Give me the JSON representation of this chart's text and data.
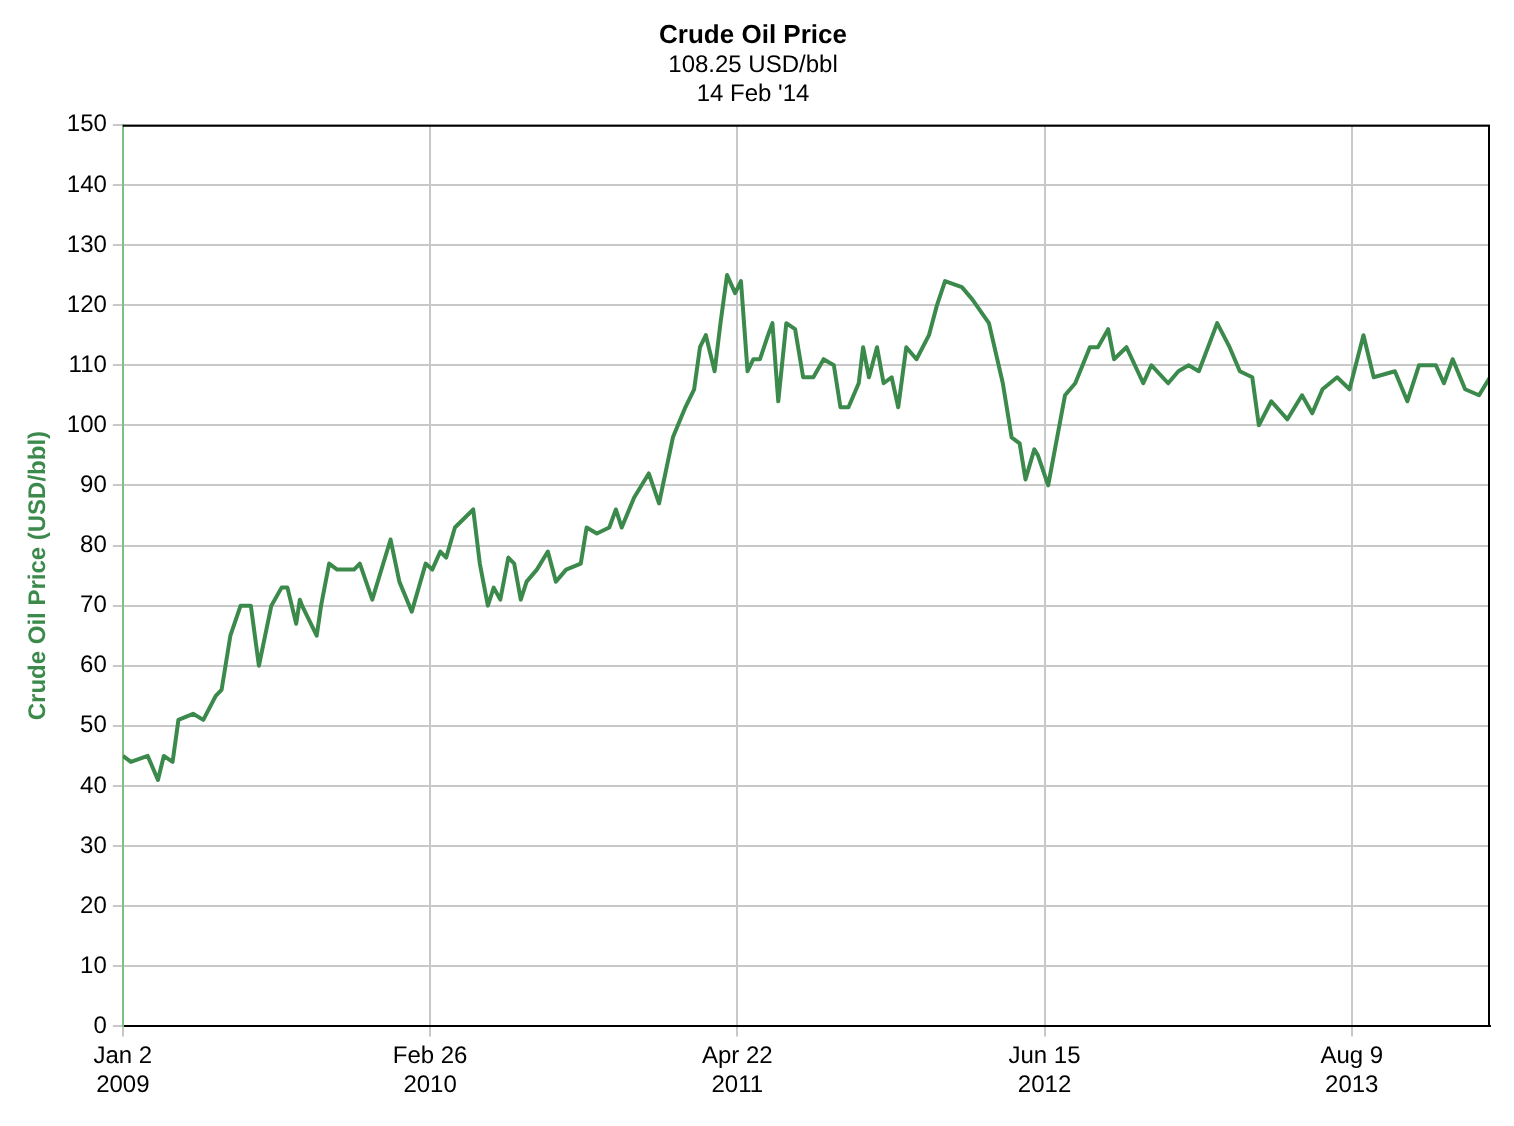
{
  "chart_data": {
    "type": "line",
    "title": "Crude Oil Price",
    "subtitle": "108.25 USD/bbl\n14 Feb '14",
    "ylabel": "Crude Oil Price (USD/bbl)",
    "x": [
      "2009-01-02",
      "2009-01-13",
      "2009-02-05",
      "2009-02-19",
      "2009-02-27",
      "2009-03-11",
      "2009-03-19",
      "2009-04-08",
      "2009-04-22",
      "2009-05-09",
      "2009-05-17",
      "2009-05-29",
      "2009-06-12",
      "2009-06-26",
      "2009-07-07",
      "2009-07-24",
      "2009-08-07",
      "2009-08-15",
      "2009-08-27",
      "2009-09-01",
      "2009-09-04",
      "2009-09-24",
      "2009-09-30",
      "2009-10-11",
      "2009-10-22",
      "2009-11-14",
      "2009-11-22",
      "2009-12-09",
      "2010-01-03",
      "2010-01-15",
      "2010-02-01",
      "2010-02-20",
      "2010-03-01",
      "2010-03-12",
      "2010-03-20",
      "2010-04-01",
      "2010-04-26",
      "2010-05-05",
      "2010-05-16",
      "2010-05-24",
      "2010-06-02",
      "2010-06-13",
      "2010-06-21",
      "2010-06-30",
      "2010-07-08",
      "2010-07-22",
      "2010-08-06",
      "2010-08-17",
      "2010-08-31",
      "2010-09-20",
      "2010-09-28",
      "2010-10-12",
      "2010-10-29",
      "2010-11-07",
      "2010-11-15",
      "2010-12-02",
      "2010-12-22",
      "2011-01-05",
      "2011-01-24",
      "2011-02-10",
      "2011-02-22",
      "2011-03-02",
      "2011-03-10",
      "2011-03-22",
      "2011-03-30",
      "2011-04-08",
      "2011-04-19",
      "2011-04-27",
      "2011-05-06",
      "2011-05-14",
      "2011-05-23",
      "2011-06-03",
      "2011-06-09",
      "2011-06-17",
      "2011-06-28",
      "2011-07-10",
      "2011-07-21",
      "2011-08-04",
      "2011-08-18",
      "2011-09-01",
      "2011-09-10",
      "2011-09-21",
      "2011-10-05",
      "2011-10-11",
      "2011-10-19",
      "2011-10-30",
      "2011-11-08",
      "2011-11-19",
      "2011-11-28",
      "2011-12-09",
      "2011-12-23",
      "2012-01-09",
      "2012-01-20",
      "2012-01-31",
      "2012-02-23",
      "2012-03-08",
      "2012-03-31",
      "2012-04-19",
      "2012-05-01",
      "2012-05-12",
      "2012-05-20",
      "2012-06-01",
      "2012-06-06",
      "2012-06-20",
      "2012-07-13",
      "2012-07-27",
      "2012-08-16",
      "2012-08-27",
      "2012-09-10",
      "2012-09-18",
      "2012-10-05",
      "2012-10-28",
      "2012-11-08",
      "2012-12-01",
      "2012-12-15",
      "2012-12-29",
      "2013-01-12",
      "2013-02-06",
      "2013-02-23",
      "2013-03-09",
      "2013-03-26",
      "2013-04-04",
      "2013-04-21",
      "2013-05-13",
      "2013-06-02",
      "2013-06-16",
      "2013-06-30",
      "2013-07-20",
      "2013-08-06",
      "2013-08-25",
      "2013-09-08",
      "2013-10-07",
      "2013-10-24",
      "2013-11-09",
      "2013-12-02",
      "2013-12-13",
      "2013-12-25",
      "2014-01-11",
      "2014-01-30",
      "2014-02-14"
    ],
    "series": [
      {
        "color": "#3b8a4c",
        "values": [
          45,
          44,
          45,
          41,
          45,
          44,
          51,
          52,
          51,
          55,
          56,
          65,
          70,
          70,
          60,
          70,
          73,
          73,
          67,
          71,
          70,
          65,
          70,
          77,
          76,
          76,
          77,
          71,
          81,
          74,
          69,
          77,
          76,
          79,
          78,
          83,
          86,
          77,
          70,
          73,
          71,
          78,
          77,
          71,
          74,
          76,
          79,
          74,
          76,
          77,
          83,
          82,
          83,
          86,
          83,
          88,
          92,
          87,
          98,
          103,
          106,
          113,
          115,
          109,
          117,
          125,
          122,
          124,
          109,
          111,
          111,
          115,
          117,
          104,
          117,
          116,
          108,
          108,
          111,
          110,
          103,
          103,
          107,
          113,
          108,
          113,
          107,
          108,
          103,
          113,
          111,
          115,
          120,
          124,
          123,
          121,
          117,
          107,
          98,
          97,
          91,
          96,
          95,
          90,
          105,
          107,
          113,
          113,
          116,
          111,
          113,
          107,
          110,
          107,
          109,
          110,
          109,
          117,
          113,
          109,
          108,
          100,
          104,
          101,
          105,
          102,
          106,
          108,
          106,
          115,
          108,
          109,
          104,
          110,
          110,
          107,
          111,
          106,
          105,
          108
        ]
      }
    ],
    "ylim": [
      0,
      150
    ],
    "yticks": [
      0,
      10,
      20,
      30,
      40,
      50,
      60,
      70,
      80,
      90,
      100,
      110,
      120,
      130,
      140,
      150
    ],
    "xlim": [
      "2009-01-02",
      "2014-02-14"
    ],
    "xticks": [
      {
        "value": "2009-01-02",
        "label": "Jan 2\n2009"
      },
      {
        "value": "2010-02-26",
        "label": "Feb 26\n2010"
      },
      {
        "value": "2011-04-22",
        "label": "Apr 22\n2011"
      },
      {
        "value": "2012-06-15",
        "label": "Jun 15\n2012"
      },
      {
        "value": "2013-08-09",
        "label": "Aug 9\n2013"
      }
    ],
    "grid": true,
    "legend": false,
    "marker": "none",
    "line_style": "solid"
  }
}
